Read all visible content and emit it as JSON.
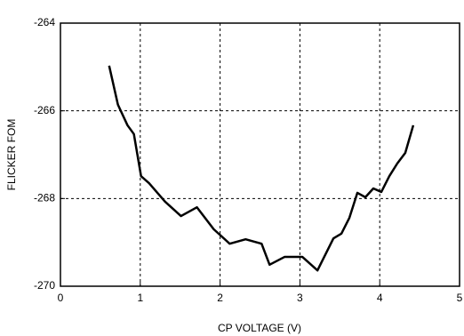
{
  "chart_data": {
    "type": "line",
    "x_label": "CP VOLTAGE (V)",
    "y_label": "FLICKER FOM",
    "x": [
      0.61,
      0.72,
      0.84,
      0.92,
      1.01,
      1.11,
      1.31,
      1.51,
      1.71,
      1.92,
      2.12,
      2.32,
      2.52,
      2.62,
      2.81,
      3.03,
      3.22,
      3.42,
      3.52,
      3.62,
      3.72,
      3.82,
      3.92,
      4.02,
      4.12,
      4.22,
      4.32,
      4.42
    ],
    "series": [
      {
        "color": "#000000",
        "values": [
          -264.97,
          -265.86,
          -266.33,
          -266.53,
          -267.49,
          -267.65,
          -268.07,
          -268.4,
          -268.2,
          -268.7,
          -269.03,
          -268.93,
          -269.03,
          -269.51,
          -269.33,
          -269.33,
          -269.64,
          -268.91,
          -268.8,
          -268.44,
          -267.87,
          -267.97,
          -267.77,
          -267.85,
          -267.49,
          -267.2,
          -266.96,
          -266.33
        ]
      }
    ],
    "xlim": [
      0,
      5
    ],
    "xticks": [
      0,
      1,
      2,
      3,
      4,
      5
    ],
    "ylim": [
      -270,
      -264
    ],
    "yticks": [
      -270,
      -268,
      -266,
      -264
    ],
    "grid": true
  }
}
